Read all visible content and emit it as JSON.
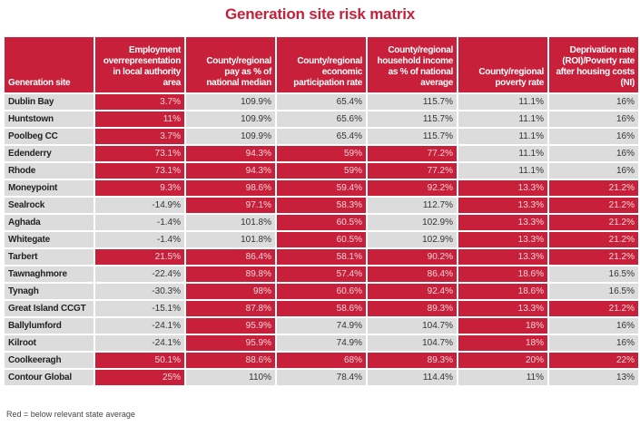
{
  "chart_data": {
    "type": "table",
    "title": "Generation site risk matrix",
    "columns": [
      "Generation site",
      "Employment overrepresentation in local authority area",
      "County/regional pay as % of national median",
      "County/regional economic participation rate",
      "County/regional household income as % of national average",
      "County/regional poverty rate",
      "Deprivation rate (ROI)/Poverty rate after housing costs (NI)"
    ],
    "rows": [
      {
        "site": "Dublin Bay",
        "values": [
          "3.7%",
          "109.9%",
          "65.4%",
          "115.7%",
          "11.1%",
          "16%"
        ],
        "red": [
          true,
          false,
          false,
          false,
          false,
          false
        ]
      },
      {
        "site": "Huntstown",
        "values": [
          "11%",
          "109.9%",
          "65.6%",
          "115.7%",
          "11.1%",
          "16%"
        ],
        "red": [
          true,
          false,
          false,
          false,
          false,
          false
        ]
      },
      {
        "site": "Poolbeg CC",
        "values": [
          "3.7%",
          "109.9%",
          "65.4%",
          "115.7%",
          "11.1%",
          "16%"
        ],
        "red": [
          true,
          false,
          false,
          false,
          false,
          false
        ]
      },
      {
        "site": "Edenderry",
        "values": [
          "73.1%",
          "94.3%",
          "59%",
          "77.2%",
          "11.1%",
          "16%"
        ],
        "red": [
          true,
          true,
          true,
          true,
          false,
          false
        ]
      },
      {
        "site": "Rhode",
        "values": [
          "73.1%",
          "94.3%",
          "59%",
          "77.2%",
          "11.1%",
          "16%"
        ],
        "red": [
          true,
          true,
          true,
          true,
          false,
          false
        ]
      },
      {
        "site": "Moneypoint",
        "values": [
          "9.3%",
          "98.6%",
          "59.4%",
          "92.2%",
          "13.3%",
          "21.2%"
        ],
        "red": [
          true,
          true,
          true,
          true,
          true,
          true
        ]
      },
      {
        "site": "Sealrock",
        "values": [
          "-14.9%",
          "97.1%",
          "58.3%",
          "112.7%",
          "13.3%",
          "21.2%"
        ],
        "red": [
          false,
          true,
          true,
          false,
          true,
          true
        ]
      },
      {
        "site": "Aghada",
        "values": [
          "-1.4%",
          "101.8%",
          "60.5%",
          "102.9%",
          "13.3%",
          "21.2%"
        ],
        "red": [
          false,
          false,
          true,
          false,
          true,
          true
        ]
      },
      {
        "site": "Whitegate",
        "values": [
          "-1.4%",
          "101.8%",
          "60.5%",
          "102.9%",
          "13.3%",
          "21.2%"
        ],
        "red": [
          false,
          false,
          true,
          false,
          true,
          true
        ]
      },
      {
        "site": "Tarbert",
        "values": [
          "21.5%",
          "86.4%",
          "58.1%",
          "90.2%",
          "13.3%",
          "21.2%"
        ],
        "red": [
          true,
          true,
          true,
          true,
          true,
          true
        ]
      },
      {
        "site": "Tawnaghmore",
        "values": [
          "-22.4%",
          "89.8%",
          "57.4%",
          "86.4%",
          "18.6%",
          "16.5%"
        ],
        "red": [
          false,
          true,
          true,
          true,
          true,
          false
        ]
      },
      {
        "site": "Tynagh",
        "values": [
          "-30.3%",
          "98%",
          "60.6%",
          "92.4%",
          "18.6%",
          "16.5%"
        ],
        "red": [
          false,
          true,
          true,
          true,
          true,
          false
        ]
      },
      {
        "site": "Great Island CCGT",
        "values": [
          "-15.1%",
          "87.8%",
          "58.6%",
          "89.3%",
          "13.3%",
          "21.2%"
        ],
        "red": [
          false,
          true,
          true,
          true,
          true,
          true
        ]
      },
      {
        "site": "Ballylumford",
        "values": [
          "-24.1%",
          "95.9%",
          "74.9%",
          "104.7%",
          "18%",
          "16%"
        ],
        "red": [
          false,
          true,
          false,
          false,
          true,
          false
        ]
      },
      {
        "site": "Kilroot",
        "values": [
          "-24.1%",
          "95.9%",
          "74.9%",
          "104.7%",
          "18%",
          "16%"
        ],
        "red": [
          false,
          true,
          false,
          false,
          true,
          false
        ]
      },
      {
        "site": "Coolkeeragh",
        "values": [
          "50.1%",
          "88.6%",
          "68%",
          "89.3%",
          "20%",
          "22%"
        ],
        "red": [
          true,
          true,
          true,
          true,
          true,
          true
        ]
      },
      {
        "site": "Contour Global",
        "values": [
          "25%",
          "110%",
          "78.4%",
          "114.4%",
          "11%",
          "13%"
        ],
        "red": [
          true,
          false,
          false,
          false,
          false,
          false
        ]
      }
    ],
    "legend": "Red = below relevant state average",
    "colors": {
      "red": "#c8203a",
      "grey": "#dcdcdc",
      "title": "#c8203a"
    }
  }
}
